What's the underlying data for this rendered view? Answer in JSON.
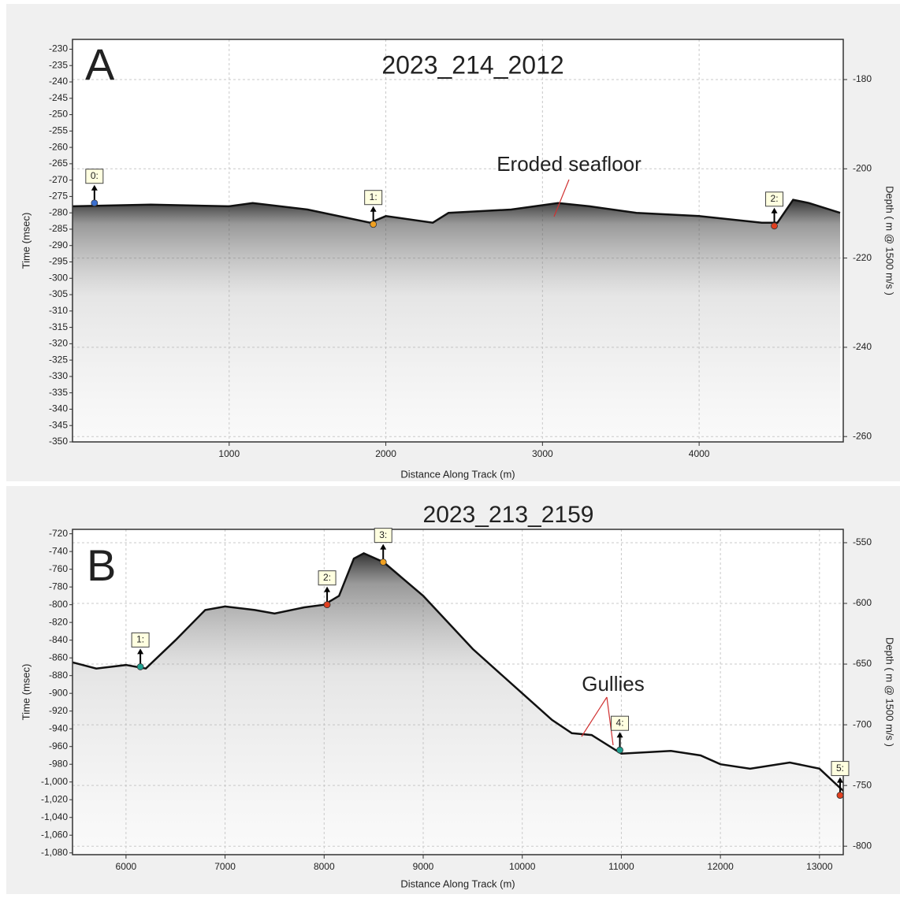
{
  "chart_data": [
    {
      "type": "line",
      "panel_label": "A",
      "title": "2023_214_2012",
      "annotation": "Eroded seafloor",
      "x_label": "Distance Along Track (m)",
      "y_label": "Time (msec)",
      "y2_label": "Depth ( m @ 1500 m/s )",
      "xlim": [
        0,
        4920
      ],
      "ylim": [
        -350,
        -227
      ],
      "y2lim": [
        -261.2,
        -171
      ],
      "xticks": [
        1000,
        2000,
        3000,
        4000
      ],
      "yticks": [
        -230,
        -235,
        -240,
        -245,
        -250,
        -255,
        -260,
        -265,
        -270,
        -275,
        -280,
        -285,
        -290,
        -295,
        -300,
        -305,
        -310,
        -315,
        -320,
        -325,
        -330,
        -335,
        -340,
        -345,
        -350
      ],
      "y2ticks": [
        -180,
        -200,
        -220,
        -240,
        -260
      ],
      "grid": true,
      "color": "#111111",
      "x": [
        0,
        500,
        1000,
        1150,
        1500,
        1900,
        2000,
        2300,
        2400,
        2800,
        3100,
        3300,
        3600,
        4000,
        4400,
        4500,
        4600,
        4700,
        4900
      ],
      "values": [
        -278,
        -277.5,
        -278,
        -277,
        -279,
        -283,
        -281,
        -283,
        -280,
        -279,
        -277,
        -278,
        -280,
        -281,
        -283,
        -283,
        -276,
        -277,
        -280
      ],
      "markers": [
        {
          "label": "0:",
          "x": 140,
          "y": -277,
          "color": "#3a6fd0"
        },
        {
          "label": "1:",
          "x": 1920,
          "y": -283.5,
          "color": "#f0a020"
        },
        {
          "label": "2:",
          "x": 4480,
          "y": -284,
          "color": "#e04020"
        }
      ]
    },
    {
      "type": "line",
      "panel_label": "B",
      "title": "2023_213_2159",
      "annotation": "Gullies",
      "x_label": "Distance Along Track (m)",
      "y_label": "Time (msec)",
      "y2_label": "Depth ( m @ 1500 m/s )",
      "xlim": [
        5460,
        13240
      ],
      "ylim": [
        -1082,
        -715
      ],
      "y2lim": [
        -807,
        -539
      ],
      "xticks": [
        6000,
        7000,
        8000,
        9000,
        10000,
        11000,
        12000,
        13000
      ],
      "yticks": [
        -720,
        -740,
        -760,
        -780,
        -800,
        -820,
        -840,
        -860,
        -880,
        -900,
        -920,
        -940,
        -960,
        -980,
        {
          "value": -1000,
          "label": "-1,000"
        },
        {
          "value": -1020,
          "label": "-1,020"
        },
        {
          "value": -1040,
          "label": "-1,040"
        },
        {
          "value": -1060,
          "label": "-1,060"
        },
        {
          "value": -1080,
          "label": "-1,080"
        }
      ],
      "y2ticks": [
        -550,
        -600,
        -650,
        -700,
        -750,
        -800
      ],
      "grid": true,
      "color": "#111111",
      "x": [
        5460,
        5700,
        6000,
        6200,
        6500,
        6800,
        7000,
        7300,
        7500,
        7800,
        8000,
        8150,
        8300,
        8400,
        8600,
        9000,
        9500,
        10000,
        10300,
        10500,
        10700,
        11000,
        11500,
        11800,
        12000,
        12300,
        12700,
        13000,
        13240
      ],
      "values": [
        -865,
        -872,
        -868,
        -872,
        -840,
        -806,
        -802,
        -806,
        -810,
        -803,
        -800,
        -790,
        -748,
        -742,
        -752,
        -790,
        -850,
        -900,
        -930,
        -945,
        -947,
        -968,
        -965,
        -970,
        -980,
        -985,
        -978,
        -985,
        -1010
      ],
      "markers": [
        {
          "label": "1:",
          "x": 6145,
          "y": -870,
          "color": "#20a090"
        },
        {
          "label": "2:",
          "x": 8030,
          "y": -800,
          "color": "#e04020"
        },
        {
          "label": "3:",
          "x": 8596,
          "y": -752,
          "color": "#f0a020"
        },
        {
          "label": "4:",
          "x": 10985,
          "y": -964,
          "color": "#20a090"
        },
        {
          "label": "5:",
          "x": 13208,
          "y": -1015,
          "color": "#e04020"
        }
      ]
    }
  ]
}
